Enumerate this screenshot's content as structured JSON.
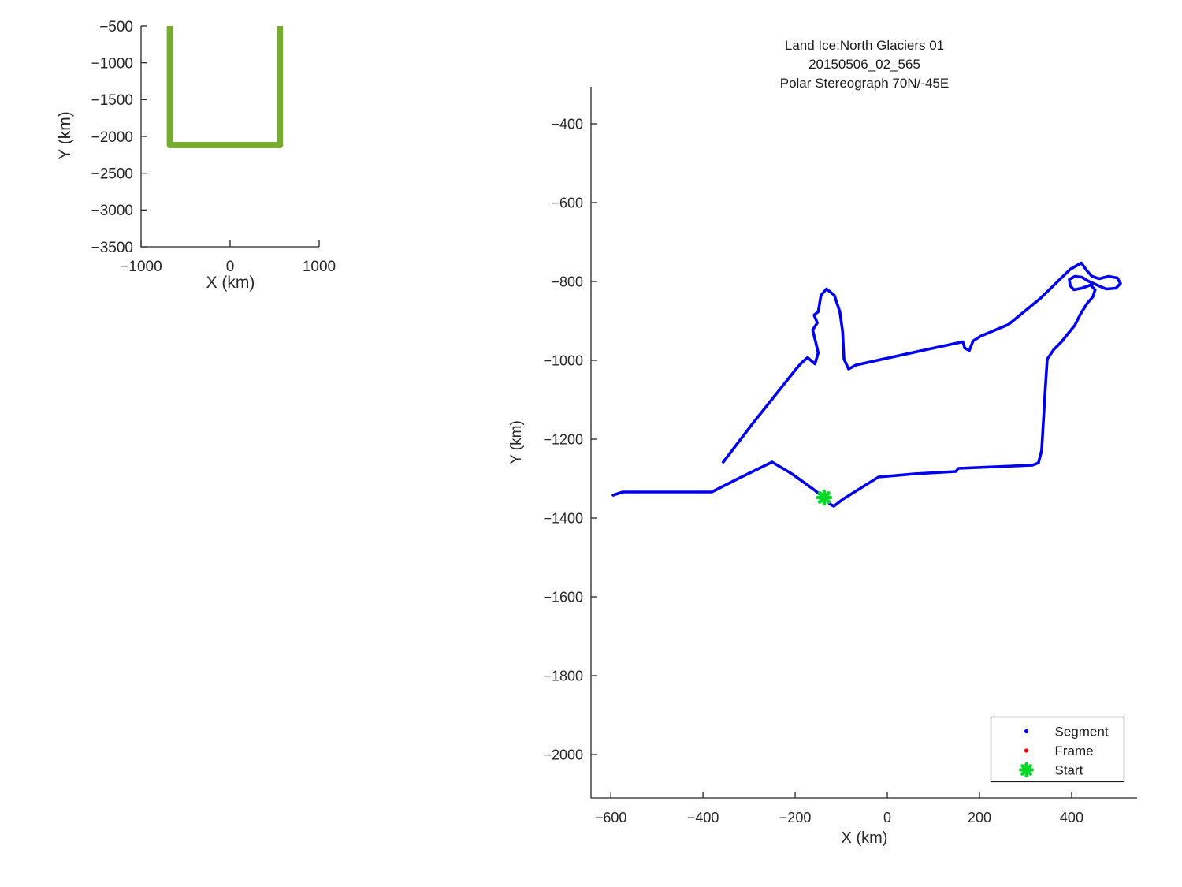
{
  "figure": {
    "background": "#ffffff",
    "axis_color": "#262626"
  },
  "chart_data": [
    {
      "id": "overview",
      "type": "line",
      "title": "",
      "xlabel": "X (km)",
      "ylabel": "Y (km)",
      "xlim": [
        -1000,
        1000
      ],
      "ylim": [
        -3500,
        -500
      ],
      "xticks": [
        -1000,
        0,
        1000
      ],
      "yticks": [
        -3500,
        -3000,
        -2500,
        -2000,
        -1500,
        -1000,
        -500
      ],
      "grid": false,
      "legend": null,
      "series": [
        {
          "name": "survey-region-outline",
          "color": "#77ac30",
          "width": 8,
          "cap": "butt",
          "points": [
            [
              -676,
              -500
            ],
            [
              -676,
              -2118
            ],
            [
              559,
              -2118
            ],
            [
              559,
              -500
            ]
          ]
        }
      ]
    },
    {
      "id": "flight",
      "type": "line",
      "title_lines": [
        "Land Ice:North Glaciers 01",
        "20150506_02_565",
        "Polar Stereograph 70N/-45E"
      ],
      "xlabel": "X (km)",
      "ylabel": "Y (km)",
      "xlim": [
        -643,
        542
      ],
      "ylim": [
        -2110,
        -306
      ],
      "xticks": [
        -600,
        -400,
        -200,
        0,
        200,
        400
      ],
      "yticks": [
        -2000,
        -1800,
        -1600,
        -1400,
        -1200,
        -1000,
        -800,
        -600,
        -400
      ],
      "grid": false,
      "series": [
        {
          "name": "segment-track",
          "color": "#0000ee",
          "width": 3.6,
          "cap": "round",
          "points": [
            [
              -595,
              -1342
            ],
            [
              -574,
              -1334
            ],
            [
              -381,
              -1334
            ],
            [
              -327,
              -1302
            ],
            [
              -250,
              -1258
            ],
            [
              -207,
              -1288
            ],
            [
              -164,
              -1324
            ],
            [
              -137,
              -1348
            ],
            [
              -125,
              -1364
            ],
            [
              -116,
              -1370
            ],
            [
              -96,
              -1352
            ],
            [
              -19,
              -1296
            ],
            [
              58,
              -1288
            ],
            [
              149,
              -1282
            ],
            [
              154,
              -1274
            ],
            [
              315,
              -1266
            ],
            [
              328,
              -1260
            ],
            [
              335,
              -1228
            ],
            [
              342,
              -1088
            ],
            [
              347,
              -997
            ],
            [
              361,
              -973
            ],
            [
              378,
              -953
            ],
            [
              393,
              -931
            ],
            [
              407,
              -911
            ],
            [
              419,
              -883
            ],
            [
              434,
              -855
            ],
            [
              446,
              -839
            ],
            [
              451,
              -821
            ],
            [
              441,
              -809
            ],
            [
              422,
              -817
            ],
            [
              405,
              -821
            ],
            [
              397,
              -811
            ],
            [
              395,
              -795
            ],
            [
              407,
              -787
            ],
            [
              422,
              -789
            ],
            [
              436,
              -799
            ],
            [
              455,
              -809
            ],
            [
              475,
              -819
            ],
            [
              496,
              -817
            ],
            [
              506,
              -805
            ],
            [
              499,
              -791
            ],
            [
              480,
              -787
            ],
            [
              460,
              -793
            ],
            [
              444,
              -787
            ],
            [
              432,
              -771
            ],
            [
              421,
              -753
            ],
            [
              397,
              -769
            ],
            [
              332,
              -843
            ],
            [
              263,
              -909
            ],
            [
              202,
              -939
            ],
            [
              186,
              -951
            ],
            [
              178,
              -975
            ],
            [
              168,
              -969
            ],
            [
              164,
              -953
            ],
            [
              92,
              -971
            ],
            [
              -10,
              -997
            ],
            [
              -68,
              -1012
            ],
            [
              -84,
              -1022
            ],
            [
              -94,
              -997
            ],
            [
              -97,
              -927
            ],
            [
              -103,
              -877
            ],
            [
              -115,
              -835
            ],
            [
              -132,
              -819
            ],
            [
              -144,
              -835
            ],
            [
              -150,
              -877
            ],
            [
              -159,
              -885
            ],
            [
              -152,
              -905
            ],
            [
              -162,
              -923
            ],
            [
              -156,
              -951
            ],
            [
              -150,
              -981
            ],
            [
              -157,
              -1009
            ],
            [
              -173,
              -993
            ],
            [
              -185,
              -1005
            ],
            [
              -198,
              -1022
            ],
            [
              -232,
              -1072
            ],
            [
              -292,
              -1160
            ],
            [
              -356,
              -1258
            ]
          ]
        }
      ],
      "markers": [
        {
          "name": "start-marker",
          "shape": "star",
          "color": "#00d926",
          "size": 8,
          "x": -137,
          "y": -1348
        }
      ],
      "legend": {
        "position": "lower-right",
        "entries": [
          {
            "label": "Segment",
            "marker": "dot",
            "color": "#0000ee"
          },
          {
            "label": "Frame",
            "marker": "dot",
            "color": "#ff0000"
          },
          {
            "label": "Start",
            "marker": "star",
            "color": "#00d926"
          }
        ]
      }
    }
  ]
}
